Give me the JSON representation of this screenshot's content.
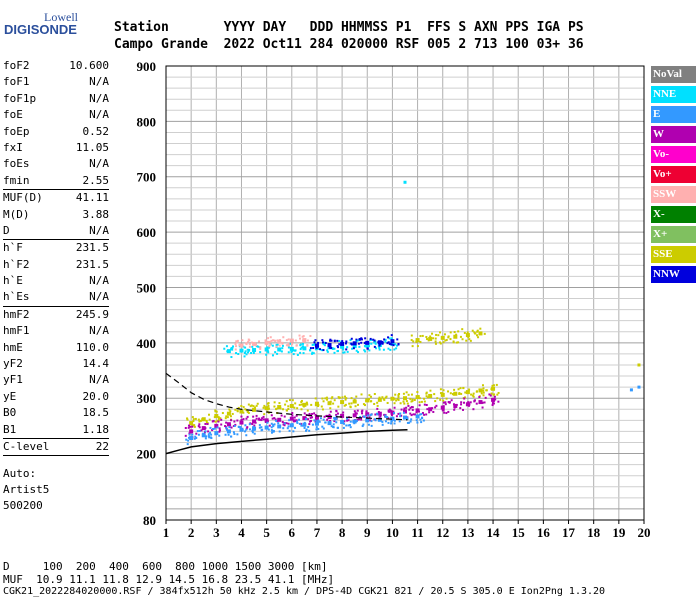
{
  "logo": {
    "line1": "Lowell",
    "line2": "DIGISONDE"
  },
  "header": {
    "row1": "Station       YYYY DAY   DDD HHMMSS P1  FFS S AXN PPS IGA PS",
    "row2": "Campo Grande  2022 Oct11 284 020000 RSF 005 2 713 100 03+ 36"
  },
  "params_group1": [
    {
      "key": "foF2",
      "value": "10.600"
    },
    {
      "key": "foF1",
      "value": "N/A"
    },
    {
      "key": "foF1p",
      "value": "N/A"
    },
    {
      "key": "foE",
      "value": "N/A"
    },
    {
      "key": "foEp",
      "value": "0.52"
    },
    {
      "key": "fxI",
      "value": "11.05"
    },
    {
      "key": "foEs",
      "value": "N/A"
    },
    {
      "key": "fmin",
      "value": "2.55"
    }
  ],
  "params_group2": [
    {
      "key": "MUF(D)",
      "value": "41.11"
    },
    {
      "key": "M(D)",
      "value": "3.88"
    },
    {
      "key": "D",
      "value": "N/A"
    }
  ],
  "params_group3": [
    {
      "key": "h`F",
      "value": "231.5"
    },
    {
      "key": "h`F2",
      "value": "231.5"
    },
    {
      "key": "h`E",
      "value": "N/A"
    },
    {
      "key": "h`Es",
      "value": "N/A"
    }
  ],
  "params_group4": [
    {
      "key": "hmF2",
      "value": "245.9"
    },
    {
      "key": "hmF1",
      "value": "N/A"
    },
    {
      "key": "hmE",
      "value": "110.0"
    },
    {
      "key": "yF2",
      "value": "14.4"
    },
    {
      "key": "yF1",
      "value": "N/A"
    },
    {
      "key": "yE",
      "value": "20.0"
    },
    {
      "key": "B0",
      "value": "18.5"
    },
    {
      "key": "B1",
      "value": "1.18"
    }
  ],
  "params_group5": [
    {
      "key": "C-level",
      "value": "22"
    }
  ],
  "autoscaling": {
    "line1": "Auto:",
    "line2": "Artist5",
    "line3": "500200"
  },
  "legend": [
    {
      "label": "NoVal",
      "color": "#808080"
    },
    {
      "label": "NNE",
      "color": "#00e0ff"
    },
    {
      "label": "E",
      "color": "#3399ff"
    },
    {
      "label": "W",
      "color": "#b000b0"
    },
    {
      "label": "Vo-",
      "color": "#ff00cc"
    },
    {
      "label": "Vo+",
      "color": "#ee0033"
    },
    {
      "label": "SSW",
      "color": "#ffb0b0"
    },
    {
      "label": "X-",
      "color": "#008000"
    },
    {
      "label": "X+",
      "color": "#80c060"
    },
    {
      "label": "SSE",
      "color": "#cccc00"
    },
    {
      "label": "NNW",
      "color": "#0000dd"
    }
  ],
  "footer": {
    "line1": "D     100  200  400  600  800 1000 1500 3000 [km]",
    "line2": "MUF  10.9 11.1 11.8 12.9 14.5 16.8 23.5 41.1 [MHz]",
    "line3": "CGK21_2022284020000.RSF / 384fx512h 50 kHz 2.5 km / DPS-4D CGK21 821 / 20.5 S 305.0 E Ion2Png 1.3.20"
  },
  "chart_data": {
    "type": "scatter",
    "title": "",
    "xlabel": "",
    "ylabel": "",
    "xlim": [
      1,
      20
    ],
    "ylim": [
      80,
      900
    ],
    "xticks": [
      "1",
      "2",
      "3",
      "4",
      "5",
      "6",
      "7",
      "8",
      "9",
      "10",
      "11",
      "12",
      "13",
      "14",
      "15",
      "16",
      "17",
      "18",
      "19",
      "20"
    ],
    "yticks": [
      "80",
      "200",
      "300",
      "400",
      "500",
      "600",
      "700",
      "800",
      "900"
    ],
    "grid": true,
    "legend_position": "right",
    "traces": [
      {
        "name": "SSE",
        "color": "#cccc00",
        "x": [
          2.0,
          2.5,
          3.0,
          3.5,
          4.0,
          4.5,
          5.0,
          5.5,
          6.0,
          6.5,
          7.0,
          7.5,
          8.0,
          8.5,
          9.0,
          9.5,
          10.0,
          10.5,
          11.0,
          11.5,
          12.0,
          12.5,
          13.0,
          13.5,
          14.0
        ],
        "y": [
          255,
          262,
          268,
          272,
          276,
          279,
          282,
          284,
          286,
          288,
          290,
          291,
          293,
          294,
          296,
          297,
          299,
          300,
          302,
          304,
          306,
          308,
          311,
          314,
          317
        ]
      },
      {
        "name": "W",
        "color": "#b000b0",
        "x": [
          2.0,
          2.5,
          3.0,
          3.5,
          4.0,
          4.5,
          5.0,
          5.5,
          6.0,
          6.5,
          7.0,
          7.5,
          8.0,
          8.5,
          9.0,
          9.5,
          10.0,
          10.5,
          11.0,
          11.5,
          12.0,
          12.5,
          13.0,
          13.5,
          14.0
        ],
        "y": [
          240,
          246,
          250,
          253,
          256,
          258,
          260,
          261,
          263,
          264,
          265,
          266,
          268,
          269,
          271,
          272,
          274,
          276,
          278,
          280,
          283,
          286,
          289,
          293,
          297
        ]
      },
      {
        "name": "E",
        "color": "#3399ff",
        "x": [
          2.0,
          2.5,
          3.0,
          3.5,
          4.0,
          4.5,
          5.0,
          5.5,
          6.0,
          6.5,
          7.0,
          7.5,
          8.0,
          8.5,
          9.0,
          9.5,
          10.0,
          10.5,
          11.0
        ],
        "y": [
          228,
          233,
          237,
          240,
          243,
          245,
          247,
          249,
          251,
          252,
          254,
          255,
          257,
          258,
          260,
          261,
          263,
          265,
          267
        ]
      },
      {
        "name": "NNE",
        "color": "#00e0ff",
        "x": [
          3.5,
          4.0,
          4.5,
          5.0,
          5.5,
          6.0,
          6.5,
          7.0,
          7.5,
          8.0,
          8.5,
          9.0,
          9.5,
          10.0
        ],
        "y": [
          385,
          386,
          387,
          388,
          388,
          389,
          390,
          391,
          392,
          393,
          394,
          395,
          396,
          398
        ]
      },
      {
        "name": "SSE",
        "color": "#cccc00",
        "x": [
          11.0,
          11.5,
          12.0,
          12.5,
          13.0,
          13.5
        ],
        "y": [
          405,
          407,
          409,
          411,
          414,
          417
        ]
      },
      {
        "name": "NNW",
        "color": "#0000dd",
        "x": [
          7.0,
          7.5,
          8.0,
          8.5,
          9.0,
          9.5,
          10.0
        ],
        "y": [
          395,
          396,
          398,
          399,
          400,
          401,
          403
        ]
      },
      {
        "name": "SSW",
        "color": "#ffb0b0",
        "x": [
          4.0,
          4.5,
          5.0,
          5.5,
          6.0,
          6.5
        ],
        "y": [
          395,
          398,
          400,
          402,
          404,
          405
        ]
      }
    ],
    "profile_curve": {
      "color": "#000000",
      "x": [
        1.0,
        1.5,
        2.0,
        3.0,
        4.0,
        5.0,
        6.0,
        7.0,
        8.0,
        9.0,
        10.0,
        10.6
      ],
      "y": [
        200,
        206,
        212,
        218,
        222,
        226,
        230,
        234,
        237,
        240,
        242,
        243
      ]
    },
    "leading_edge_curve": {
      "color": "#000000",
      "style": "dashed",
      "x": [
        1.0,
        1.5,
        2.0,
        2.5,
        3.0,
        3.5,
        4.0,
        5.0,
        6.0,
        7.0,
        8.0,
        9.0,
        10.0,
        10.6
      ],
      "y": [
        345,
        328,
        310,
        298,
        290,
        284,
        280,
        275,
        271,
        268,
        266,
        264,
        262,
        261
      ]
    },
    "outliers": [
      {
        "x": 19.8,
        "y": 360,
        "color": "#cccc00"
      },
      {
        "x": 19.5,
        "y": 315,
        "color": "#3399ff"
      },
      {
        "x": 19.8,
        "y": 320,
        "color": "#3399ff"
      },
      {
        "x": 10.5,
        "y": 690,
        "color": "#00e0ff"
      }
    ]
  }
}
